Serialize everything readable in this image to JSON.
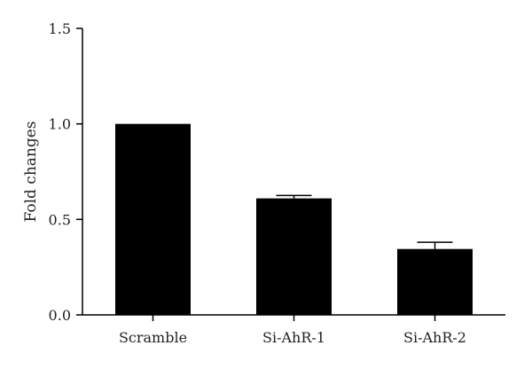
{
  "chart_data": {
    "type": "bar",
    "categories": [
      "Scramble",
      "Si-AhR-1",
      "Si-AhR-2"
    ],
    "values": [
      1.0,
      0.61,
      0.345
    ],
    "error_upper": [
      0.0,
      0.015,
      0.035
    ],
    "title": "",
    "xlabel": "",
    "ylabel": "Fold changes",
    "ylim": [
      0,
      1.5
    ],
    "yticks": [
      "0.0",
      "0.5",
      "1.0",
      "1.5"
    ],
    "yticks_values": [
      0,
      0.5,
      1.0,
      1.5
    ],
    "grid": false,
    "colors": {
      "bar": "#000000",
      "axis": "#000000"
    }
  }
}
